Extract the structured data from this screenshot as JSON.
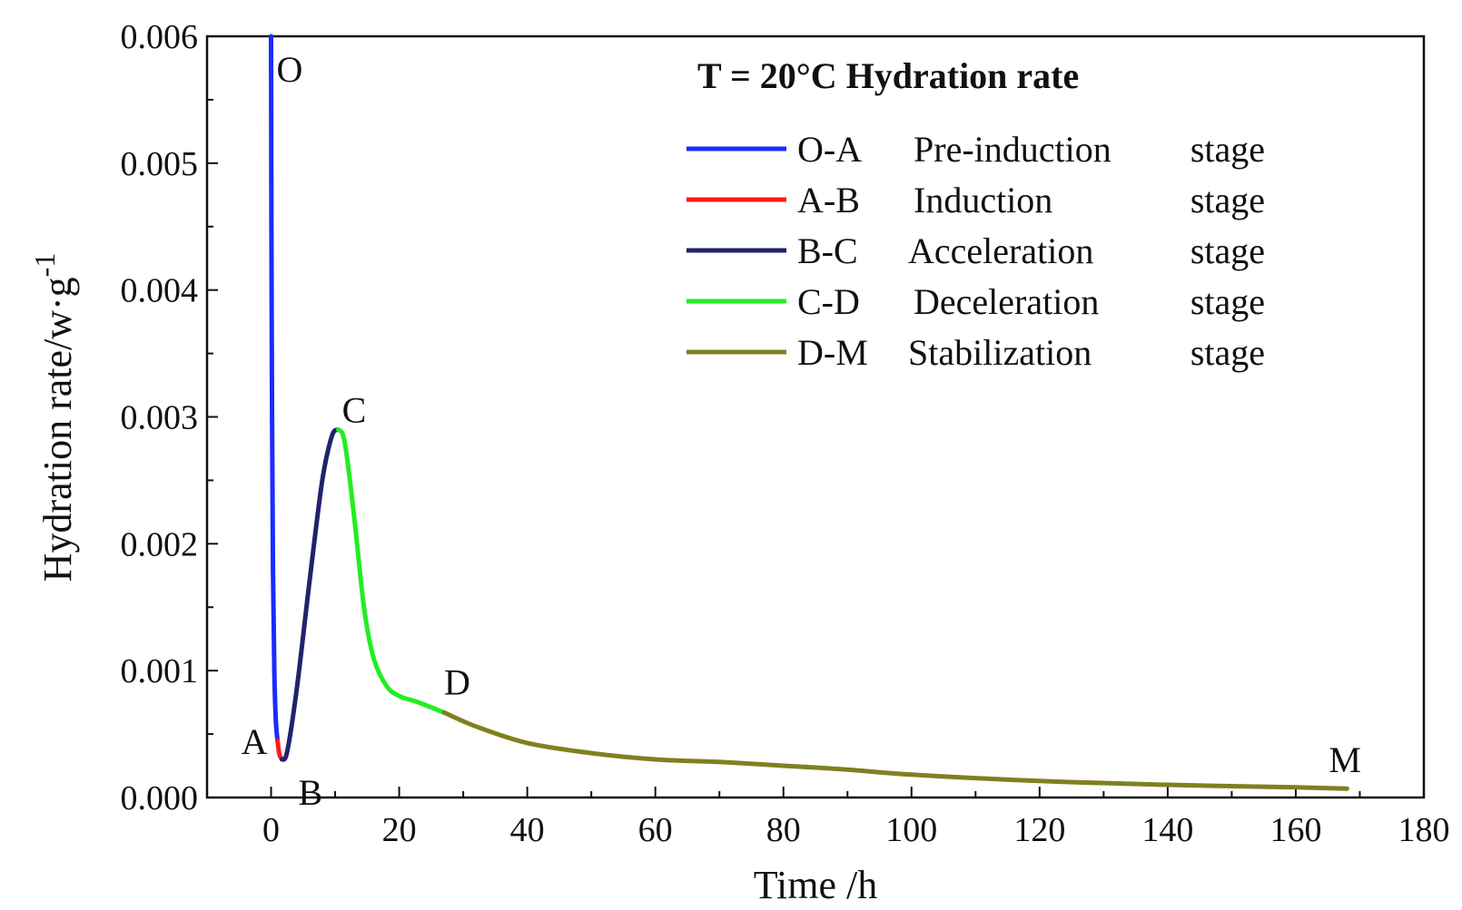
{
  "chart_data": {
    "type": "line",
    "xlabel": "Time /h",
    "ylabel": "Hydration  rate/w·g",
    "ylabel_sup": "-1",
    "xlim": [
      -10,
      180
    ],
    "ylim": [
      0,
      0.006
    ],
    "x_ticks": [
      0,
      20,
      40,
      60,
      80,
      100,
      120,
      140,
      160,
      180
    ],
    "y_ticks": [
      "0.000",
      "0.001",
      "0.002",
      "0.003",
      "0.004",
      "0.005",
      "0.006"
    ],
    "grid": false,
    "legend_placement": "top-right",
    "legend_title": "T = 20°C Hydration  rate",
    "series": [
      {
        "name": "O-A",
        "stage": "Pre-induction stage",
        "color": "#1a2cff",
        "points": [
          [
            0,
            0.006
          ],
          [
            0.05,
            0.0045
          ],
          [
            0.15,
            0.003
          ],
          [
            0.3,
            0.0018
          ],
          [
            0.5,
            0.001
          ],
          [
            0.75,
            0.0006
          ],
          [
            1.0,
            0.00045
          ]
        ]
      },
      {
        "name": "A-B",
        "stage": "Induction stage",
        "color": "#ff1a1a",
        "points": [
          [
            1.0,
            0.00045
          ],
          [
            1.3,
            0.00034
          ],
          [
            1.7,
            0.0003
          ]
        ]
      },
      {
        "name": "B-C",
        "stage": "Acceleration stage",
        "color": "#22226e",
        "points": [
          [
            1.7,
            0.0003
          ],
          [
            2.5,
            0.00036
          ],
          [
            4,
            0.00085
          ],
          [
            6,
            0.0017
          ],
          [
            8,
            0.0025
          ],
          [
            9.5,
            0.00285
          ],
          [
            10.5,
            0.0029
          ]
        ]
      },
      {
        "name": "C-D",
        "stage": "Deceleration stage",
        "color": "#22ee22",
        "points": [
          [
            10.5,
            0.0029
          ],
          [
            11.5,
            0.0028
          ],
          [
            13,
            0.0022
          ],
          [
            14.5,
            0.0015
          ],
          [
            16,
            0.0011
          ],
          [
            18,
            0.00088
          ],
          [
            20,
            0.0008
          ],
          [
            23,
            0.00075
          ],
          [
            27,
            0.00067
          ]
        ]
      },
      {
        "name": "D-M",
        "stage": "Stabilization stage",
        "color": "#808020",
        "points": [
          [
            27,
            0.00067
          ],
          [
            32,
            0.00056
          ],
          [
            40,
            0.00043
          ],
          [
            50,
            0.00035
          ],
          [
            60,
            0.0003
          ],
          [
            70,
            0.00028
          ],
          [
            80,
            0.00025
          ],
          [
            90,
            0.00022
          ],
          [
            100,
            0.00018
          ],
          [
            120,
            0.00013
          ],
          [
            140,
            0.0001
          ],
          [
            160,
            8e-05
          ],
          [
            168,
            7e-05
          ]
        ]
      }
    ],
    "annotations": [
      {
        "text": "O",
        "x": 0,
        "y": 0.006
      },
      {
        "text": "A",
        "x": 1.0,
        "y": 0.00045
      },
      {
        "text": "B",
        "x": 1.7,
        "y": 0.0003
      },
      {
        "text": "C",
        "x": 10.5,
        "y": 0.0029
      },
      {
        "text": "D",
        "x": 27,
        "y": 0.00067
      },
      {
        "text": "M",
        "x": 168,
        "y": 7e-05
      }
    ]
  }
}
